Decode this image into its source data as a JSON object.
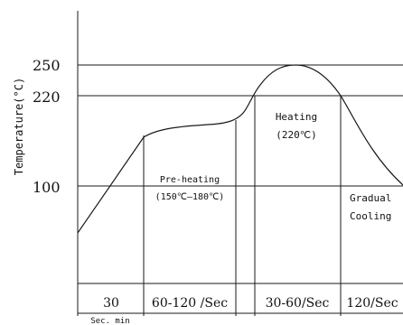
{
  "chart_data": {
    "type": "line",
    "ylabel": "Temperature(°C)",
    "y_ticks": [
      "250",
      "220",
      "100"
    ],
    "gridlines_y": [
      250,
      220,
      100
    ],
    "series": [
      {
        "values_description_free": true,
        "points": [
          [
            0,
            42
          ],
          [
            30,
            148
          ],
          [
            55,
            158
          ],
          [
            100,
            165
          ],
          [
            150,
            170
          ],
          [
            160,
            178
          ],
          [
            175,
            210
          ],
          [
            195,
            240
          ],
          [
            215,
            250
          ],
          [
            235,
            245
          ],
          [
            250,
            225
          ],
          [
            255,
            220
          ],
          [
            280,
            165
          ],
          [
            305,
            105
          ],
          [
            320,
            90
          ]
        ]
      }
    ],
    "regions": [
      {
        "label": "30"
      },
      {
        "label": "60-120 /Sec"
      },
      {
        "label": "30-60/Sec"
      },
      {
        "label": "120/Sec"
      }
    ],
    "x_unit": "Sec. min",
    "annotations": {
      "preheat_title": "Pre-heating",
      "preheat_range": "(150℃—180℃)",
      "heating_title": "Heating",
      "heating_temp": "(220℃)",
      "cooling_line1": "Gradual",
      "cooling_line2": "Cooling"
    }
  }
}
